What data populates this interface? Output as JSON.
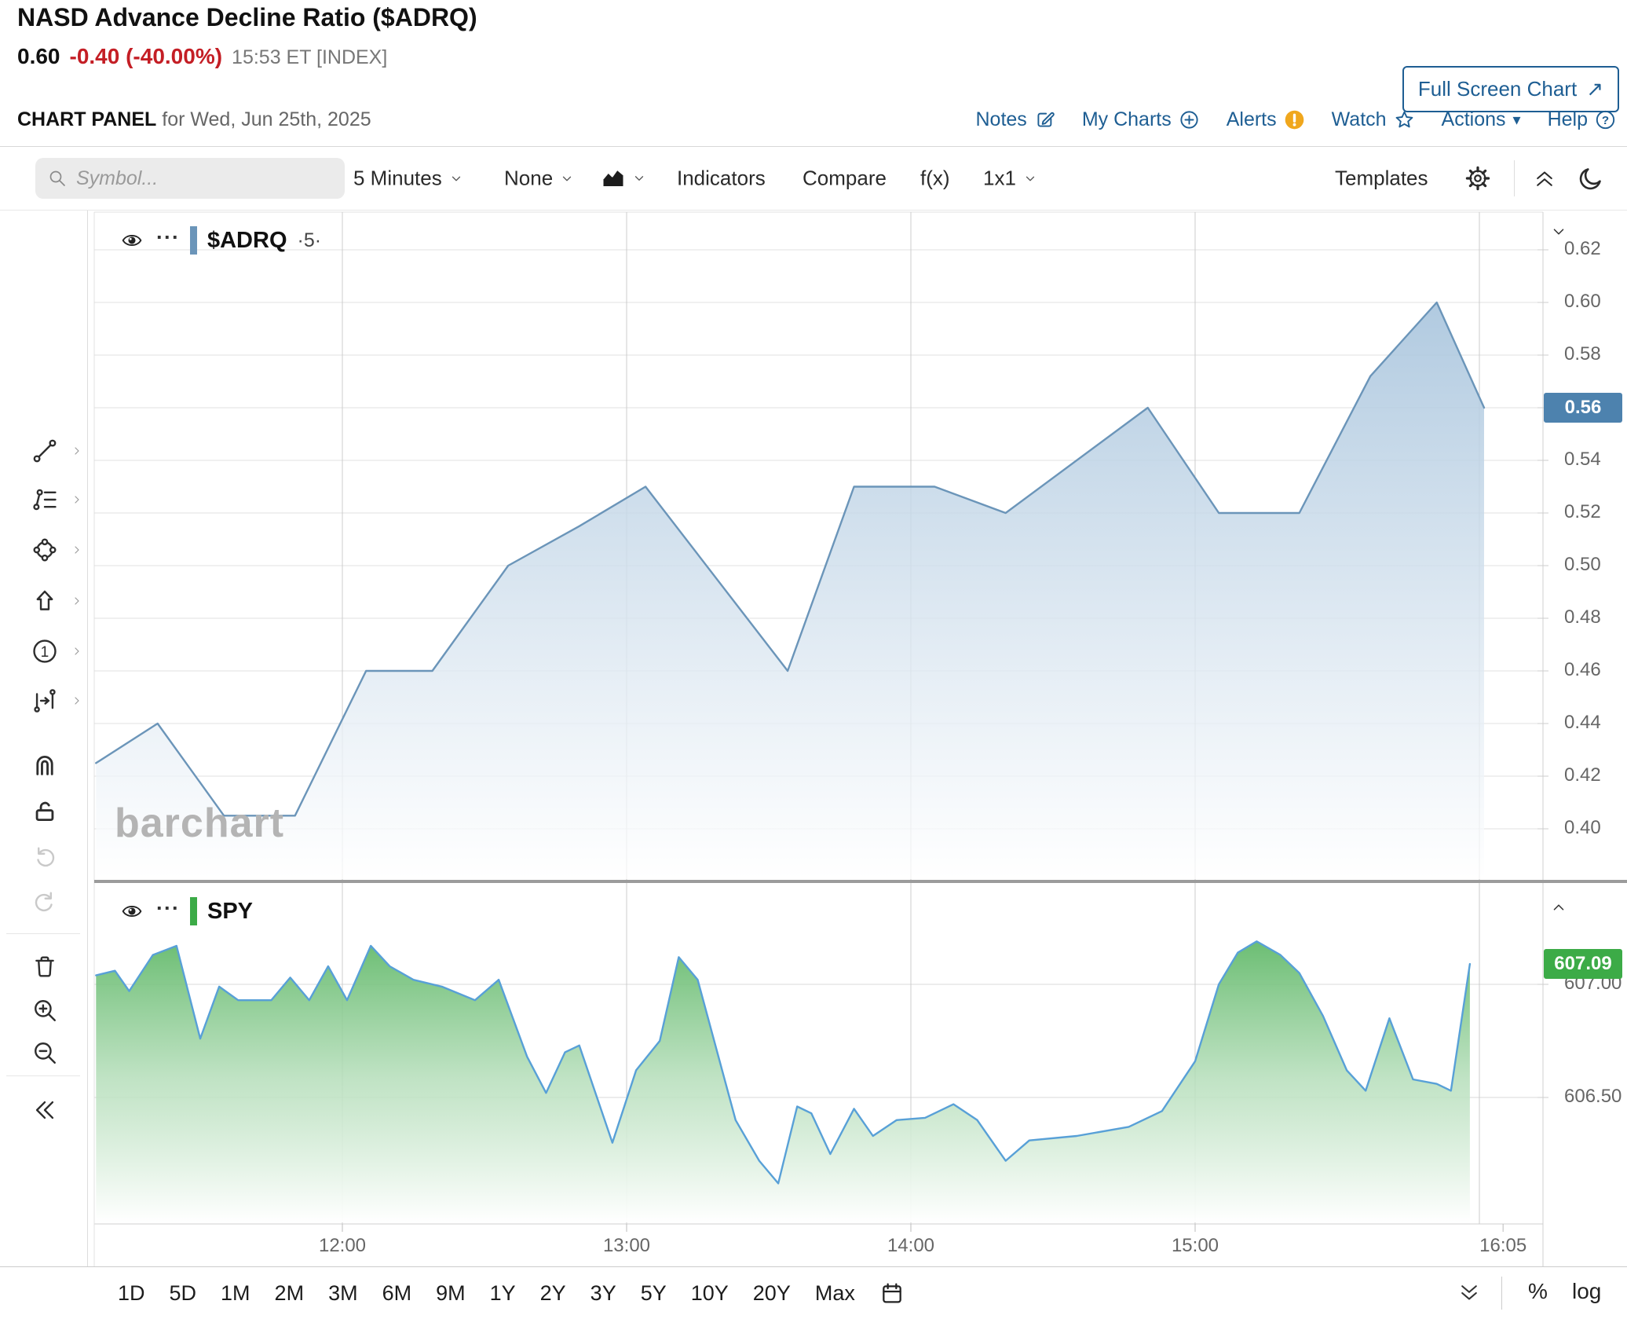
{
  "header": {
    "title": "NASD Advance Decline Ratio ($ADRQ)",
    "last_price": "0.60",
    "change": "-0.40 (-40.00%)",
    "quote_time": "15:53 ET [INDEX]",
    "panel_label": "CHART PANEL",
    "panel_date": "for Wed, Jun 25th, 2025",
    "fullscreen_label": "Full Screen Chart",
    "fullscreen_arrow": "↗",
    "nav": {
      "notes": "Notes",
      "my_charts": "My Charts",
      "alerts": "Alerts",
      "watch": "Watch",
      "actions": "Actions",
      "actions_caret": "▾",
      "help": "Help"
    }
  },
  "toolbar": {
    "symbol_placeholder": "Symbol...",
    "frequency": "5 Minutes",
    "drawing": "None",
    "indicators": "Indicators",
    "compare": "Compare",
    "fx": "f(x)",
    "layout": "1x1",
    "templates": "Templates"
  },
  "legend_menu_dots": "···",
  "watermark": "barchart",
  "periods": [
    "1D",
    "5D",
    "1M",
    "2M",
    "3M",
    "6M",
    "9M",
    "1Y",
    "2Y",
    "3Y",
    "5Y",
    "10Y",
    "20Y",
    "Max"
  ],
  "scale_controls": {
    "percent": "%",
    "log": "log"
  },
  "colors": {
    "link_blue": "#1e5e93",
    "accent_red": "#c41e25",
    "alert_orange": "#f0a71d",
    "adrq_line": "#6b95b9",
    "adrq_fill_top": "#9cbcd8",
    "adrq_badge": "#4d82ae",
    "spy_line": "#58a0d7",
    "spy_fill_top": "#44ac4d",
    "spy_badge": "#3cab47",
    "axis_text": "#666666"
  },
  "chart_data": [
    {
      "type": "area",
      "name": "$ADRQ",
      "interval_label": "·5·",
      "pane": "top",
      "x_unit": "minutes_after_11:00_ET",
      "points": [
        [
          8,
          0.425
        ],
        [
          21,
          0.44
        ],
        [
          35,
          0.405
        ],
        [
          50,
          0.405
        ],
        [
          65,
          0.46
        ],
        [
          79,
          0.46
        ],
        [
          95,
          0.5
        ],
        [
          110,
          0.515
        ],
        [
          124,
          0.53
        ],
        [
          154,
          0.46
        ],
        [
          168,
          0.53
        ],
        [
          185,
          0.53
        ],
        [
          200,
          0.52
        ],
        [
          230,
          0.56
        ],
        [
          245,
          0.52
        ],
        [
          262,
          0.52
        ],
        [
          277,
          0.572
        ],
        [
          291,
          0.6
        ],
        [
          301,
          0.56
        ]
      ],
      "y_ticks": [
        "0.62",
        "0.60",
        "0.58",
        "0.56",
        "0.54",
        "0.52",
        "0.50",
        "0.48",
        "0.46",
        "0.44",
        "0.42",
        "0.40"
      ],
      "ylim": [
        0.385,
        0.634
      ],
      "grid": true,
      "legend_position": "top-left",
      "last_badge": "0.56"
    },
    {
      "type": "area",
      "name": "SPY",
      "pane": "bottom",
      "x_unit": "minutes_after_11:00_ET",
      "points": [
        [
          8,
          607.04
        ],
        [
          12,
          607.06
        ],
        [
          15,
          606.97
        ],
        [
          20,
          607.13
        ],
        [
          25,
          607.17
        ],
        [
          30,
          606.76
        ],
        [
          34,
          606.99
        ],
        [
          38,
          606.93
        ],
        [
          45,
          606.93
        ],
        [
          49,
          607.03
        ],
        [
          53,
          606.93
        ],
        [
          57,
          607.08
        ],
        [
          61,
          606.93
        ],
        [
          66,
          607.17
        ],
        [
          70,
          607.08
        ],
        [
          75,
          607.02
        ],
        [
          81,
          606.99
        ],
        [
          88,
          606.93
        ],
        [
          93,
          607.02
        ],
        [
          99,
          606.68
        ],
        [
          103,
          606.52
        ],
        [
          107,
          606.7
        ],
        [
          110,
          606.73
        ],
        [
          117,
          606.3
        ],
        [
          122,
          606.62
        ],
        [
          127,
          606.75
        ],
        [
          131,
          607.12
        ],
        [
          135,
          607.02
        ],
        [
          143,
          606.4
        ],
        [
          148,
          606.22
        ],
        [
          152,
          606.12
        ],
        [
          156,
          606.46
        ],
        [
          159,
          606.43
        ],
        [
          163,
          606.25
        ],
        [
          168,
          606.45
        ],
        [
          172,
          606.33
        ],
        [
          177,
          606.4
        ],
        [
          183,
          606.41
        ],
        [
          189,
          606.47
        ],
        [
          194,
          606.4
        ],
        [
          200,
          606.22
        ],
        [
          205,
          606.31
        ],
        [
          215,
          606.33
        ],
        [
          226,
          606.37
        ],
        [
          233,
          606.44
        ],
        [
          240,
          606.66
        ],
        [
          245,
          607.0
        ],
        [
          249,
          607.14
        ],
        [
          253,
          607.19
        ],
        [
          258,
          607.13
        ],
        [
          262,
          607.05
        ],
        [
          267,
          606.86
        ],
        [
          272,
          606.62
        ],
        [
          276,
          606.53
        ],
        [
          281,
          606.85
        ],
        [
          286,
          606.58
        ],
        [
          291,
          606.56
        ],
        [
          294,
          606.53
        ],
        [
          298,
          607.09
        ]
      ],
      "y_ticks": [
        "607.00",
        "606.50"
      ],
      "ylim": [
        605.95,
        607.45
      ],
      "grid": true,
      "legend_position": "top-left",
      "last_badge": "607.09"
    }
  ],
  "x_axis": {
    "labels": [
      {
        "text": "12:00",
        "min": 60
      },
      {
        "text": "13:00",
        "min": 120
      },
      {
        "text": "14:00",
        "min": 180
      },
      {
        "text": "15:00",
        "min": 240
      },
      {
        "text": "16:05",
        "min": 305
      }
    ],
    "gridline_mins": [
      60,
      120,
      180,
      240,
      300
    ]
  }
}
